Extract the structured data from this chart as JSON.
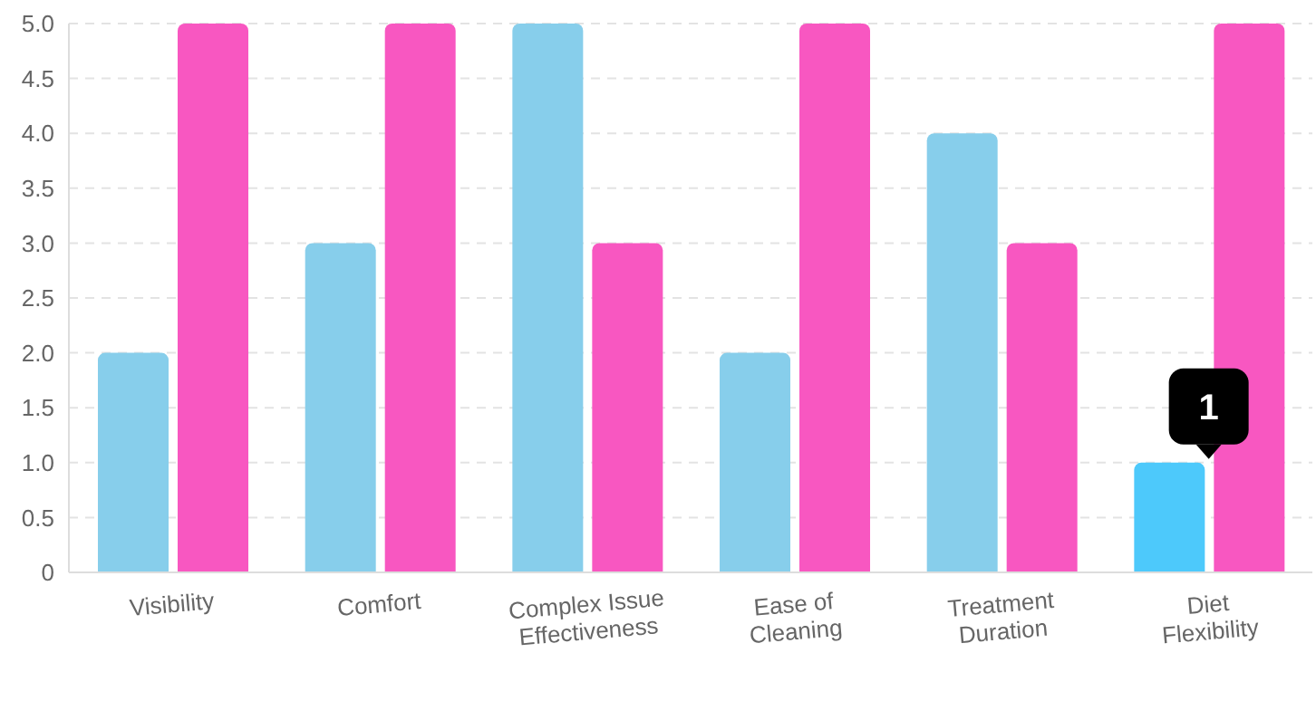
{
  "chart_data": {
    "type": "bar",
    "categories": [
      "Visibility",
      "Comfort",
      "Complex Issue Effectiveness",
      "Ease of Cleaning",
      "Treatment Duration",
      "Diet Flexibility"
    ],
    "series": [
      {
        "color": "#87ceeb",
        "colors": [
          "#87ceeb",
          "#87ceeb",
          "#87ceeb",
          "#87ceeb",
          "#87ceeb",
          "#4dc9fb"
        ],
        "values": [
          2,
          3,
          5,
          2,
          4,
          1
        ]
      },
      {
        "color": "#f857c1",
        "values": [
          5,
          5,
          3,
          5,
          3,
          5
        ]
      }
    ],
    "ylim": [
      0,
      5
    ],
    "yticks": [
      0,
      0.5,
      {
        "value": 1,
        "label": "1.0"
      },
      1.5,
      {
        "value": 2,
        "label": "2.0"
      },
      2.5,
      {
        "value": 3,
        "label": "3.0"
      },
      3.5,
      {
        "value": 4,
        "label": "4.0"
      },
      4.5,
      {
        "value": 5,
        "label": "5.0"
      }
    ],
    "grid": "y",
    "legend": false,
    "annotations": [
      {
        "text": "1",
        "x": "Diet Flexibility",
        "y": 1
      }
    ]
  }
}
